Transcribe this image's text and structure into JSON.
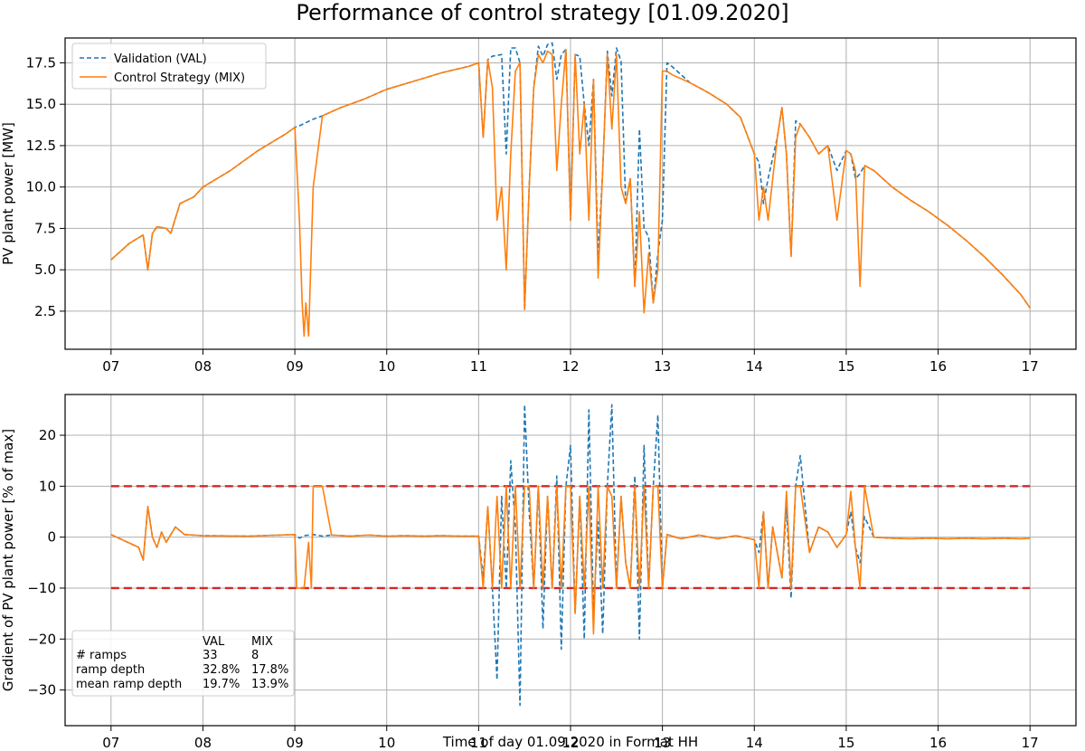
{
  "figure_title": "Performance of control strategy [01.09.2020]",
  "colors": {
    "val": "#1f77b4",
    "mix": "#ff7f0e",
    "threshold": "#d62728",
    "grid": "#b0b0b0"
  },
  "chart_data": [
    {
      "type": "line",
      "title": "",
      "xlabel": "",
      "ylabel": "PV plant power [MW]",
      "xlim": [
        6.5,
        17.5
      ],
      "ylim": [
        0.2,
        19.0
      ],
      "grid": true,
      "legend_position": "upper-left",
      "x_ticks": [
        7,
        8,
        9,
        10,
        11,
        12,
        13,
        14,
        15,
        16,
        17
      ],
      "x_tick_labels": [
        "07",
        "08",
        "09",
        "10",
        "11",
        "12",
        "13",
        "14",
        "15",
        "16",
        "17"
      ],
      "y_ticks": [
        2.5,
        5.0,
        7.5,
        10.0,
        12.5,
        15.0,
        17.5
      ],
      "y_tick_labels": [
        "2.5",
        "5.0",
        "7.5",
        "10.0",
        "12.5",
        "15.0",
        "17.5"
      ],
      "series": [
        {
          "name": "Validation (VAL)",
          "style": "dashed",
          "x": [
            7.0,
            7.2,
            7.35,
            7.4,
            7.45,
            7.5,
            7.6,
            7.65,
            7.75,
            7.9,
            8.0,
            8.3,
            8.6,
            8.9,
            9.0,
            9.05,
            9.2,
            9.3,
            9.5,
            9.75,
            10.0,
            10.3,
            10.6,
            10.9,
            11.0,
            11.05,
            11.1,
            11.15,
            11.25,
            11.3,
            11.35,
            11.4,
            11.45,
            11.5,
            11.55,
            11.6,
            11.65,
            11.7,
            11.75,
            11.8,
            11.85,
            11.9,
            11.95,
            12.0,
            12.05,
            12.1,
            12.15,
            12.2,
            12.25,
            12.3,
            12.35,
            12.4,
            12.45,
            12.5,
            12.55,
            12.6,
            12.65,
            12.7,
            12.75,
            12.8,
            12.85,
            12.9,
            12.95,
            13.0,
            13.05,
            13.1,
            13.3,
            13.5,
            13.7,
            13.85,
            14.0,
            14.05,
            14.1,
            14.15,
            14.25,
            14.3,
            14.35,
            14.4,
            14.45,
            14.5,
            14.6,
            14.7,
            14.8,
            14.9,
            15.0,
            15.05,
            15.1,
            15.15,
            15.2,
            15.3,
            15.5,
            15.7,
            15.9,
            16.1,
            16.3,
            16.5,
            16.7,
            16.9,
            17.0
          ],
          "y": [
            5.6,
            6.6,
            7.1,
            5.0,
            7.2,
            7.6,
            7.5,
            7.2,
            9.0,
            9.4,
            10.0,
            11.0,
            12.2,
            13.2,
            13.6,
            13.7,
            14.1,
            14.3,
            14.8,
            15.3,
            15.9,
            16.4,
            16.9,
            17.3,
            17.5,
            13.0,
            17.7,
            17.9,
            18.0,
            12.0,
            18.4,
            18.4,
            17.5,
            2.6,
            10.0,
            16.0,
            18.5,
            17.9,
            18.6,
            18.7,
            16.5,
            18.0,
            18.3,
            8.0,
            18.0,
            17.9,
            15.0,
            12.5,
            16.5,
            5.8,
            11.0,
            18.2,
            15.5,
            18.4,
            17.6,
            9.0,
            10.5,
            4.0,
            13.5,
            7.5,
            7.0,
            3.0,
            6.0,
            8.0,
            17.5,
            17.3,
            16.3,
            15.7,
            15.0,
            14.2,
            12.0,
            11.5,
            9.0,
            10.5,
            13.0,
            14.8,
            12.0,
            5.8,
            14.0,
            13.8,
            13.0,
            12.0,
            12.5,
            11.0,
            12.2,
            12.0,
            10.5,
            10.8,
            11.3,
            11.0,
            10.0,
            9.2,
            8.5,
            7.7,
            6.8,
            5.8,
            4.7,
            3.5,
            2.7
          ]
        },
        {
          "name": "Control Strategy (MIX)",
          "style": "solid",
          "x": [
            7.0,
            7.2,
            7.35,
            7.4,
            7.45,
            7.5,
            7.6,
            7.65,
            7.75,
            7.9,
            8.0,
            8.3,
            8.6,
            8.9,
            9.0,
            9.05,
            9.08,
            9.1,
            9.12,
            9.15,
            9.2,
            9.3,
            9.5,
            9.75,
            10.0,
            10.3,
            10.6,
            10.9,
            11.0,
            11.05,
            11.1,
            11.15,
            11.2,
            11.25,
            11.3,
            11.35,
            11.4,
            11.45,
            11.5,
            11.55,
            11.6,
            11.65,
            11.7,
            11.75,
            11.8,
            11.85,
            11.9,
            11.95,
            12.0,
            12.05,
            12.1,
            12.15,
            12.2,
            12.25,
            12.3,
            12.35,
            12.4,
            12.45,
            12.5,
            12.55,
            12.6,
            12.65,
            12.7,
            12.75,
            12.8,
            12.85,
            12.9,
            12.95,
            13.0,
            13.05,
            13.1,
            13.3,
            13.5,
            13.7,
            13.85,
            14.0,
            14.05,
            14.1,
            14.15,
            14.25,
            14.3,
            14.35,
            14.4,
            14.45,
            14.5,
            14.6,
            14.7,
            14.8,
            14.9,
            15.0,
            15.05,
            15.1,
            15.15,
            15.2,
            15.3,
            15.5,
            15.7,
            15.9,
            16.1,
            16.3,
            16.5,
            16.7,
            16.9,
            17.0
          ],
          "y": [
            5.6,
            6.6,
            7.1,
            5.0,
            7.2,
            7.6,
            7.5,
            7.2,
            9.0,
            9.4,
            10.0,
            11.0,
            12.2,
            13.2,
            13.6,
            8.0,
            3.0,
            1.0,
            3.0,
            1.0,
            10.0,
            14.3,
            14.8,
            15.3,
            15.9,
            16.4,
            16.9,
            17.3,
            17.5,
            13.0,
            17.7,
            16.0,
            8.0,
            10.0,
            5.0,
            12.0,
            17.0,
            17.5,
            2.6,
            10.0,
            16.0,
            18.0,
            17.5,
            18.2,
            18.0,
            11.0,
            15.0,
            18.3,
            8.0,
            18.0,
            12.0,
            15.0,
            8.0,
            16.5,
            4.5,
            11.0,
            18.0,
            13.5,
            18.0,
            10.0,
            9.0,
            10.5,
            4.0,
            8.5,
            2.4,
            6.0,
            3.0,
            5.0,
            17.0,
            17.0,
            16.8,
            16.3,
            15.7,
            15.0,
            14.2,
            12.0,
            8.0,
            10.0,
            8.0,
            13.0,
            14.8,
            12.0,
            5.8,
            13.0,
            13.8,
            13.0,
            12.0,
            12.5,
            8.0,
            12.2,
            12.0,
            11.0,
            4.0,
            11.3,
            11.0,
            10.0,
            9.2,
            8.5,
            7.7,
            6.8,
            5.8,
            4.7,
            3.5,
            2.7
          ]
        }
      ]
    },
    {
      "type": "line",
      "title": "",
      "xlabel": "Time of day 01.09.2020 in Format HH",
      "ylabel": "Gradient of PV plant power [% of max]",
      "xlim": [
        6.5,
        17.5
      ],
      "ylim": [
        -37,
        28
      ],
      "grid": true,
      "x_ticks": [
        7,
        8,
        9,
        10,
        11,
        12,
        13,
        14,
        15,
        16,
        17
      ],
      "x_tick_labels": [
        "07",
        "08",
        "09",
        "10",
        "11",
        "12",
        "13",
        "14",
        "15",
        "16",
        "17"
      ],
      "y_ticks": [
        -30,
        -20,
        -10,
        0,
        10,
        20
      ],
      "y_tick_labels": [
        "−30",
        "−20",
        "−10",
        "0",
        "10",
        "20"
      ],
      "thresholds": [
        10,
        -10
      ],
      "series": [
        {
          "name": "VAL",
          "style": "dashed",
          "x": [
            7.0,
            7.3,
            7.35,
            7.4,
            7.45,
            7.5,
            7.55,
            7.6,
            7.7,
            7.8,
            8.0,
            8.5,
            9.0,
            9.05,
            9.1,
            9.2,
            9.3,
            9.4,
            9.6,
            9.8,
            10.0,
            10.2,
            10.4,
            10.6,
            10.8,
            11.0,
            11.05,
            11.1,
            11.15,
            11.2,
            11.25,
            11.3,
            11.35,
            11.4,
            11.45,
            11.5,
            11.55,
            11.6,
            11.65,
            11.7,
            11.75,
            11.8,
            11.85,
            11.9,
            11.95,
            12.0,
            12.05,
            12.1,
            12.15,
            12.2,
            12.25,
            12.3,
            12.35,
            12.4,
            12.45,
            12.5,
            12.55,
            12.6,
            12.65,
            12.7,
            12.75,
            12.8,
            12.85,
            12.9,
            12.95,
            13.0,
            13.05,
            13.2,
            13.4,
            13.6,
            13.8,
            14.0,
            14.05,
            14.1,
            14.15,
            14.2,
            14.3,
            14.35,
            14.4,
            14.45,
            14.5,
            14.6,
            14.7,
            14.8,
            14.9,
            15.0,
            15.05,
            15.1,
            15.15,
            15.2,
            15.3,
            15.5,
            15.7,
            15.9,
            16.1,
            16.3,
            16.5,
            16.7,
            16.9,
            17.0
          ],
          "y": [
            0.5,
            -2.0,
            -4.5,
            6.0,
            0.0,
            -2.0,
            1.0,
            -1.0,
            2.0,
            0.5,
            0.3,
            0.2,
            0.5,
            -0.2,
            0.3,
            0.5,
            0.2,
            0.4,
            0.2,
            0.4,
            0.2,
            0.3,
            0.2,
            0.3,
            0.2,
            0.2,
            -8.0,
            6.0,
            -10.0,
            -28.0,
            8.0,
            -10.0,
            15.0,
            2.0,
            -33.0,
            26.0,
            5.0,
            -10.0,
            10.0,
            -18.0,
            8.0,
            -10.0,
            12.0,
            -22.0,
            10.0,
            18.0,
            -15.0,
            8.0,
            -20.0,
            25.0,
            -15.0,
            3.0,
            -19.0,
            10.0,
            26.0,
            -10.0,
            8.0,
            -5.0,
            -10.0,
            12.0,
            -20.0,
            18.0,
            -10.0,
            10.0,
            24.0,
            -10.0,
            0.5,
            -0.3,
            0.4,
            -0.3,
            0.3,
            -0.5,
            -3.0,
            5.0,
            -10.0,
            2.0,
            -8.0,
            6.0,
            -12.0,
            10.0,
            16.0,
            -3.0,
            2.0,
            1.0,
            -2.0,
            0.5,
            5.0,
            -2.0,
            -5.0,
            4.0,
            0.0,
            -0.2,
            -0.3,
            -0.2,
            -0.3,
            -0.2,
            -0.3,
            -0.2,
            -0.3,
            -0.2
          ]
        },
        {
          "name": "MIX",
          "style": "solid",
          "x": [
            7.0,
            7.3,
            7.35,
            7.4,
            7.45,
            7.5,
            7.55,
            7.6,
            7.7,
            7.8,
            8.0,
            8.5,
            9.0,
            9.02,
            9.05,
            9.1,
            9.15,
            9.18,
            9.2,
            9.25,
            9.3,
            9.4,
            9.6,
            9.8,
            10.0,
            10.2,
            10.4,
            10.6,
            10.8,
            11.0,
            11.05,
            11.1,
            11.15,
            11.2,
            11.25,
            11.3,
            11.35,
            11.4,
            11.45,
            11.5,
            11.55,
            11.6,
            11.65,
            11.7,
            11.75,
            11.8,
            11.85,
            11.9,
            11.95,
            12.0,
            12.05,
            12.1,
            12.15,
            12.2,
            12.25,
            12.3,
            12.35,
            12.4,
            12.45,
            12.5,
            12.55,
            12.6,
            12.65,
            12.7,
            12.75,
            12.8,
            12.85,
            12.9,
            12.95,
            13.0,
            13.05,
            13.2,
            13.4,
            13.6,
            13.8,
            14.0,
            14.05,
            14.1,
            14.15,
            14.2,
            14.3,
            14.35,
            14.4,
            14.45,
            14.5,
            14.6,
            14.7,
            14.8,
            14.9,
            15.0,
            15.05,
            15.1,
            15.15,
            15.2,
            15.3,
            15.5,
            15.7,
            15.9,
            16.1,
            16.3,
            16.5,
            16.7,
            16.9,
            17.0
          ],
          "y": [
            0.5,
            -2.0,
            -4.5,
            6.0,
            0.0,
            -2.0,
            1.0,
            -1.0,
            2.0,
            0.5,
            0.3,
            0.2,
            0.5,
            -10.0,
            -10.0,
            -10.0,
            -1.0,
            -10.0,
            10.0,
            10.0,
            10.0,
            0.4,
            0.2,
            0.4,
            0.2,
            0.3,
            0.2,
            0.3,
            0.2,
            0.2,
            -10.0,
            6.0,
            -10.0,
            8.0,
            -10.0,
            10.0,
            -10.0,
            10.0,
            -10.0,
            10.0,
            10.0,
            -10.0,
            10.0,
            -10.0,
            8.0,
            -10.0,
            10.0,
            -10.0,
            10.0,
            10.0,
            -15.0,
            8.0,
            -10.0,
            10.0,
            -19.0,
            10.0,
            -10.0,
            10.0,
            8.0,
            -10.0,
            8.0,
            -5.0,
            -10.0,
            10.0,
            -10.0,
            10.0,
            -10.0,
            10.0,
            10.0,
            -10.0,
            0.5,
            -0.3,
            0.4,
            -0.3,
            0.3,
            -0.5,
            -10.0,
            5.0,
            -10.0,
            2.0,
            -8.0,
            9.0,
            -10.0,
            10.0,
            10.0,
            -3.0,
            2.0,
            1.0,
            -2.0,
            0.5,
            9.0,
            -2.0,
            -10.0,
            10.0,
            0.0,
            -0.2,
            -0.3,
            -0.2,
            -0.3,
            -0.2,
            -0.3,
            -0.2,
            -0.3,
            -0.2
          ]
        }
      ],
      "stats_table": {
        "header": [
          "",
          "VAL",
          "MIX"
        ],
        "rows": [
          [
            "# ramps",
            "33",
            "8"
          ],
          [
            "ramp depth",
            "32.8%",
            "17.8%"
          ],
          [
            "mean ramp depth",
            "19.7%",
            "13.9%"
          ]
        ]
      }
    }
  ]
}
